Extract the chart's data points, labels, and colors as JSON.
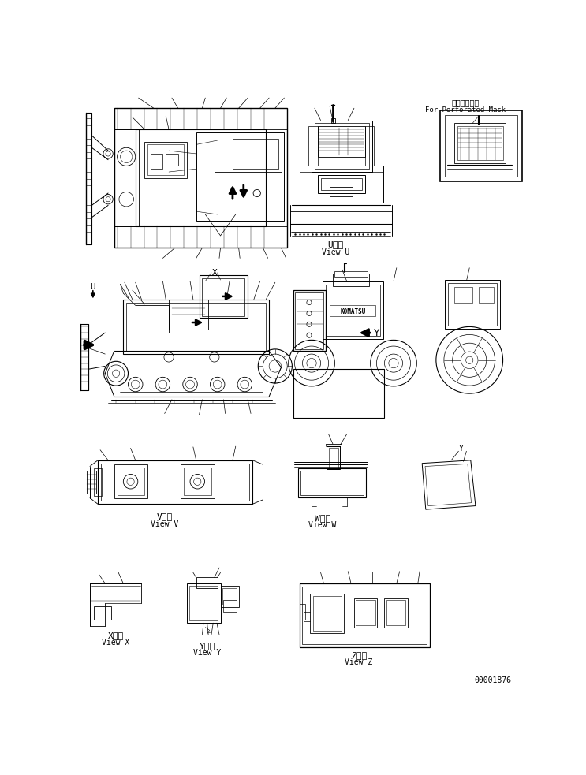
{
  "bg_color": "#ffffff",
  "line_color": "#000000",
  "fig_width": 7.43,
  "fig_height": 9.83,
  "dpi": 100,
  "top_right_text1": "丸穴マスク用",
  "top_right_text2": "For Perforated Mask",
  "view_u_label1": "U　視",
  "view_u_label2": "View U",
  "view_v_label1": "V　視",
  "view_v_label2": "View V",
  "view_w_label1": "W　視",
  "view_w_label2": "View W",
  "view_x_label1": "X　視",
  "view_x_label2": "View X",
  "view_y_label1": "Y　視",
  "view_y_label2": "View Y",
  "view_z_label1": "Z　視",
  "view_z_label2": "View Z",
  "part_number": "00001876",
  "font_size_small": 7,
  "font_size_medium": 8
}
